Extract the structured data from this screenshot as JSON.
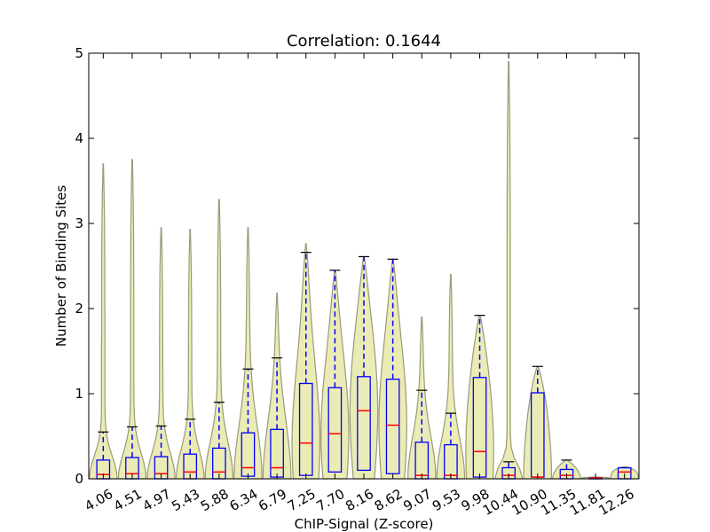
{
  "chart_data": {
    "type": "violin",
    "title": "Correlation: 0.1644",
    "xlabel": "ChIP-Signal (Z-score)",
    "ylabel": "Number of Binding Sites",
    "ylim": [
      0,
      5
    ],
    "yticks": [
      0,
      1,
      2,
      3,
      4,
      5
    ],
    "grid": false,
    "categories": [
      "4.06",
      "4.51",
      "4.97",
      "5.43",
      "5.88",
      "6.34",
      "6.79",
      "7.25",
      "7.70",
      "8.16",
      "8.62",
      "9.07",
      "9.53",
      "9.98",
      "10.44",
      "10.90",
      "11.35",
      "11.81",
      "12.26"
    ],
    "box": [
      {
        "q1": 0.0,
        "median": 0.05,
        "q3": 0.22,
        "whisker_high": 0.55,
        "violin_max": 3.7
      },
      {
        "q1": 0.0,
        "median": 0.06,
        "q3": 0.25,
        "whisker_high": 0.61,
        "violin_max": 3.75
      },
      {
        "q1": 0.0,
        "median": 0.06,
        "q3": 0.26,
        "whisker_high": 0.62,
        "violin_max": 2.95
      },
      {
        "q1": 0.0,
        "median": 0.08,
        "q3": 0.29,
        "whisker_high": 0.7,
        "violin_max": 2.93
      },
      {
        "q1": 0.0,
        "median": 0.08,
        "q3": 0.36,
        "whisker_high": 0.9,
        "violin_max": 3.28
      },
      {
        "q1": 0.03,
        "median": 0.13,
        "q3": 0.54,
        "whisker_high": 1.29,
        "violin_max": 2.95
      },
      {
        "q1": 0.02,
        "median": 0.13,
        "q3": 0.58,
        "whisker_high": 1.42,
        "violin_max": 2.18
      },
      {
        "q1": 0.04,
        "median": 0.42,
        "q3": 1.12,
        "whisker_high": 2.66,
        "violin_max": 2.76
      },
      {
        "q1": 0.08,
        "median": 0.53,
        "q3": 1.07,
        "whisker_high": 2.45,
        "violin_max": 2.45
      },
      {
        "q1": 0.1,
        "median": 0.8,
        "q3": 1.2,
        "whisker_high": 2.61,
        "violin_max": 2.61
      },
      {
        "q1": 0.06,
        "median": 0.63,
        "q3": 1.17,
        "whisker_high": 2.58,
        "violin_max": 2.58
      },
      {
        "q1": 0.0,
        "median": 0.04,
        "q3": 0.43,
        "whisker_high": 1.04,
        "violin_max": 1.9
      },
      {
        "q1": 0.0,
        "median": 0.04,
        "q3": 0.4,
        "whisker_high": 0.77,
        "violin_max": 2.4
      },
      {
        "q1": 0.02,
        "median": 0.32,
        "q3": 1.19,
        "whisker_high": 1.92,
        "violin_max": 1.92
      },
      {
        "q1": 0.0,
        "median": 0.04,
        "q3": 0.13,
        "whisker_high": 0.2,
        "violin_max": 4.9
      },
      {
        "q1": 0.02,
        "median": 0.02,
        "q3": 1.01,
        "whisker_high": 1.32,
        "violin_max": 1.32
      },
      {
        "q1": 0.0,
        "median": 0.04,
        "q3": 0.11,
        "whisker_high": 0.22,
        "violin_max": 0.22
      },
      {
        "q1": 0.0,
        "median": 0.01,
        "q3": 0.01,
        "whisker_high": 0.01,
        "violin_max": 0.02
      },
      {
        "q1": 0.0,
        "median": 0.08,
        "q3": 0.13,
        "whisker_high": 0.13,
        "violin_max": 0.14
      }
    ],
    "colors": {
      "violin_fill": "#e8e8a8",
      "violin_edge": "#9a9a7a",
      "box": "#0000ff",
      "whisker": "#0000ff",
      "median": "#ff0000",
      "cap": "#000000",
      "axes": "#000000"
    }
  }
}
